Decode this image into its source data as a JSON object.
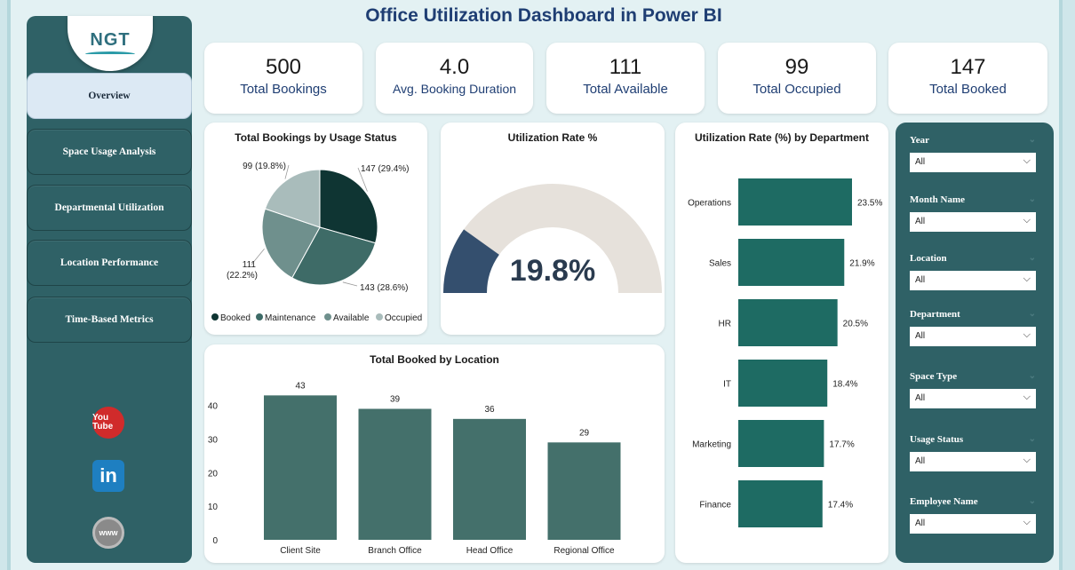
{
  "title": "Office Utilization Dashboard in Power BI",
  "logo": {
    "text": "NGT"
  },
  "nav": [
    {
      "label": "Overview",
      "active": true
    },
    {
      "label": "Space Usage Analysis",
      "active": false
    },
    {
      "label": "Departmental Utilization",
      "active": false
    },
    {
      "label": "Location Performance",
      "active": false
    },
    {
      "label": "Time-Based Metrics",
      "active": false
    }
  ],
  "social": [
    {
      "icon": "youtube-icon",
      "text": "You Tube"
    },
    {
      "icon": "linkedin-icon",
      "text": "in"
    },
    {
      "icon": "website-icon",
      "text": "www"
    }
  ],
  "kpis": [
    {
      "value": "500",
      "label": "Total Bookings"
    },
    {
      "value": "4.0",
      "label": "Avg. Booking Duration"
    },
    {
      "value": "111",
      "label": "Total Available"
    },
    {
      "value": "99",
      "label": "Total Occupied"
    },
    {
      "value": "147",
      "label": "Total Booked"
    }
  ],
  "filters": [
    {
      "label": "Year",
      "value": "All"
    },
    {
      "label": "Month Name",
      "value": "All"
    },
    {
      "label": "Location",
      "value": "All"
    },
    {
      "label": "Department",
      "value": "All"
    },
    {
      "label": "Space Type",
      "value": "All"
    },
    {
      "label": "Usage Status",
      "value": "All"
    },
    {
      "label": "Employee Name",
      "value": "All"
    }
  ],
  "colors": {
    "dark_teal": "#2f6166",
    "bar": "#44706b",
    "hbar": "#1e6b63",
    "title": "#1f3e73"
  },
  "chart_data": [
    {
      "type": "pie",
      "title": "Total Bookings by Usage Status",
      "slices": [
        {
          "name": "Booked",
          "value": 147,
          "label": "147 (29.4%)",
          "color": "#0f3533"
        },
        {
          "name": "Maintenance",
          "value": 143,
          "label": "143 (28.6%)",
          "color": "#3e6b67"
        },
        {
          "name": "Available",
          "value": 111,
          "label": "111 (22.2%)",
          "color": "#6f908d"
        },
        {
          "name": "Occupied",
          "value": 99,
          "label": "99 (19.8%)",
          "color": "#a9bcbb"
        }
      ],
      "legend": [
        "Booked",
        "Maintenance",
        "Available",
        "Occupied"
      ]
    },
    {
      "type": "gauge",
      "title": "Utilization Rate %",
      "value": 19.8,
      "display": "19.8%",
      "range": [
        0,
        100
      ]
    },
    {
      "type": "bar",
      "orientation": "horizontal",
      "title": "Utilization Rate (%) by Department",
      "categories": [
        "Operations",
        "Sales",
        "HR",
        "IT",
        "Marketing",
        "Finance"
      ],
      "values": [
        23.5,
        21.9,
        20.5,
        18.4,
        17.7,
        17.4
      ],
      "labels": [
        "23.5%",
        "21.9%",
        "20.5%",
        "18.4%",
        "17.7%",
        "17.4%"
      ]
    },
    {
      "type": "bar",
      "title": "Total Booked by Location",
      "categories": [
        "Client Site",
        "Branch Office",
        "Head Office",
        "Regional Office"
      ],
      "values": [
        43,
        39,
        36,
        29
      ],
      "yticks": [
        "0",
        "10",
        "20",
        "30",
        "40"
      ],
      "ylim": [
        0,
        46
      ]
    }
  ]
}
